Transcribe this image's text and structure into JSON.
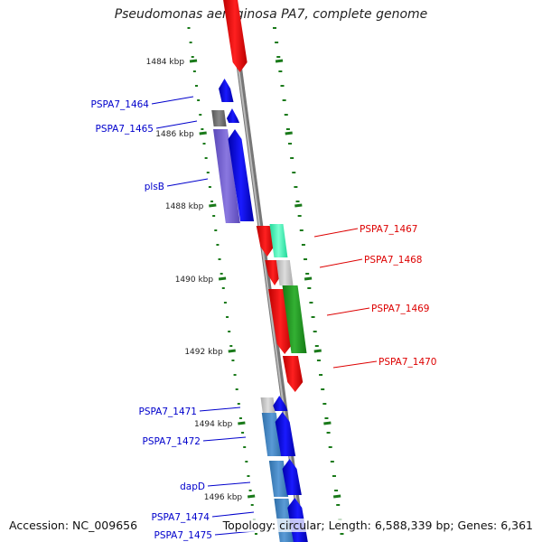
{
  "title": "Pseudomonas aeruginosa PA7, complete genome",
  "footer": {
    "accession": "Accession: NC_009656",
    "summary": "Topology: circular; Length: 6,588,339 bp; Genes: 6,361"
  },
  "colors": {
    "backbone": "#999999",
    "ticks": "#1a7a1a",
    "forward_label": "#0000cc",
    "reverse_label": "#dd0000"
  },
  "ticks": [
    {
      "label": "1484 kbp"
    },
    {
      "label": "1486 kbp"
    },
    {
      "label": "1488 kbp"
    },
    {
      "label": "1490 kbp"
    },
    {
      "label": "1492 kbp"
    },
    {
      "label": "1494 kbp"
    },
    {
      "label": "1496 kbp"
    }
  ],
  "labels": {
    "left": [
      "PSPA7_1464",
      "PSPA7_1465",
      "plsB",
      "PSPA7_1471",
      "PSPA7_1472",
      "dapD",
      "PSPA7_1474",
      "PSPA7_1475"
    ],
    "right": [
      "PSPA7_1467",
      "PSPA7_1468",
      "PSPA7_1469",
      "PSPA7_1470"
    ]
  }
}
